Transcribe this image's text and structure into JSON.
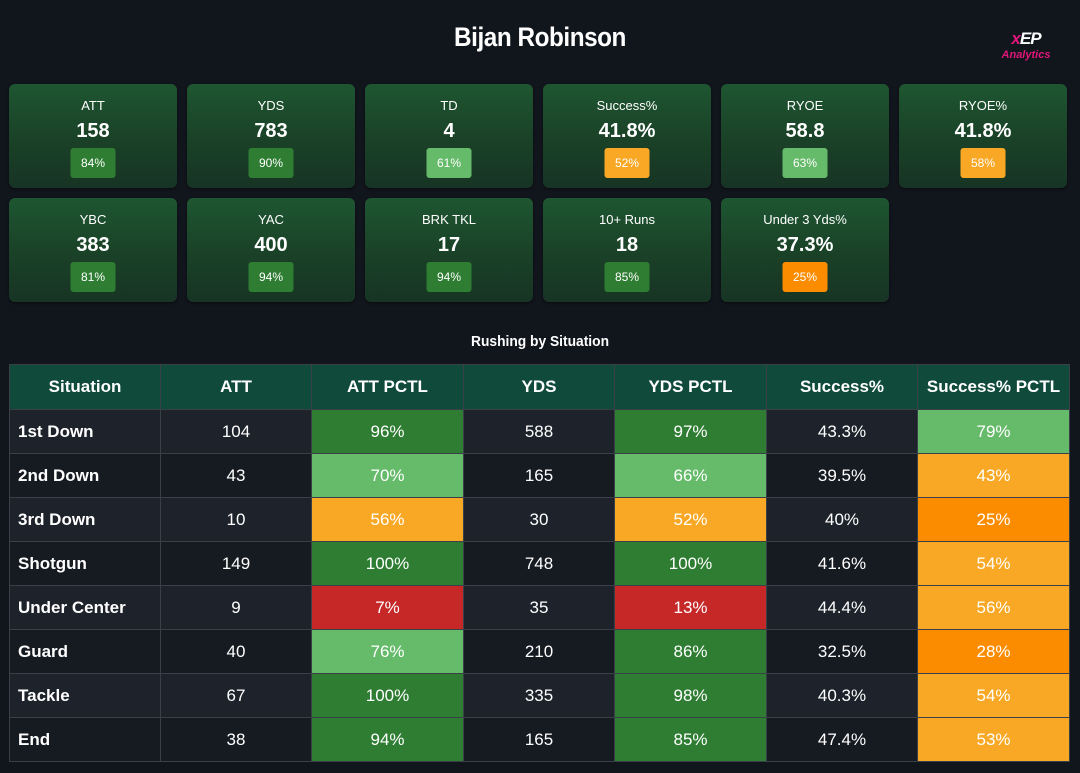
{
  "header": {
    "title": "Bijan Robinson",
    "logo": {
      "mark_x": "x",
      "mark_rest": "EP",
      "sub": "Analytics"
    }
  },
  "colors": {
    "dark_green": "#2e7d32",
    "light_green": "#66bb6a",
    "orange_light": "#f9a825",
    "orange": "#fb8c00",
    "red": "#c62828",
    "header_teal": "#0f4a3b"
  },
  "cards": [
    {
      "label": "ATT",
      "value": "158",
      "pct": "84%",
      "color": "#2e7d32"
    },
    {
      "label": "YDS",
      "value": "783",
      "pct": "90%",
      "color": "#2e7d32"
    },
    {
      "label": "TD",
      "value": "4",
      "pct": "61%",
      "color": "#66bb6a"
    },
    {
      "label": "Success%",
      "value": "41.8%",
      "pct": "52%",
      "color": "#f9a825"
    },
    {
      "label": "RYOE",
      "value": "58.8",
      "pct": "63%",
      "color": "#66bb6a"
    },
    {
      "label": "RYOE%",
      "value": "41.8%",
      "pct": "58%",
      "color": "#f9a825"
    },
    {
      "label": "YBC",
      "value": "383",
      "pct": "81%",
      "color": "#2e7d32"
    },
    {
      "label": "YAC",
      "value": "400",
      "pct": "94%",
      "color": "#2e7d32"
    },
    {
      "label": "BRK TKL",
      "value": "17",
      "pct": "94%",
      "color": "#2e7d32"
    },
    {
      "label": "10+ Runs",
      "value": "18",
      "pct": "85%",
      "color": "#2e7d32"
    },
    {
      "label": "Under 3 Yds%",
      "value": "37.3%",
      "pct": "25%",
      "color": "#fb8c00"
    }
  ],
  "situation": {
    "title": "Rushing by Situation",
    "columns": [
      "Situation",
      "ATT",
      "ATT PCTL",
      "YDS",
      "YDS PCTL",
      "Success%",
      "Success% PCTL"
    ],
    "rows": [
      {
        "situation": "1st Down",
        "att": "104",
        "att_pctl": "96%",
        "att_pctl_color": "#2e7d32",
        "yds": "588",
        "yds_pctl": "97%",
        "yds_pctl_color": "#2e7d32",
        "success": "43.3%",
        "success_pctl": "79%",
        "success_pctl_color": "#66bb6a"
      },
      {
        "situation": "2nd Down",
        "att": "43",
        "att_pctl": "70%",
        "att_pctl_color": "#66bb6a",
        "yds": "165",
        "yds_pctl": "66%",
        "yds_pctl_color": "#66bb6a",
        "success": "39.5%",
        "success_pctl": "43%",
        "success_pctl_color": "#f9a825"
      },
      {
        "situation": "3rd Down",
        "att": "10",
        "att_pctl": "56%",
        "att_pctl_color": "#f9a825",
        "yds": "30",
        "yds_pctl": "52%",
        "yds_pctl_color": "#f9a825",
        "success": "40%",
        "success_pctl": "25%",
        "success_pctl_color": "#fb8c00"
      },
      {
        "situation": "Shotgun",
        "att": "149",
        "att_pctl": "100%",
        "att_pctl_color": "#2e7d32",
        "yds": "748",
        "yds_pctl": "100%",
        "yds_pctl_color": "#2e7d32",
        "success": "41.6%",
        "success_pctl": "54%",
        "success_pctl_color": "#f9a825"
      },
      {
        "situation": "Under Center",
        "att": "9",
        "att_pctl": "7%",
        "att_pctl_color": "#c62828",
        "yds": "35",
        "yds_pctl": "13%",
        "yds_pctl_color": "#c62828",
        "success": "44.4%",
        "success_pctl": "56%",
        "success_pctl_color": "#f9a825"
      },
      {
        "situation": "Guard",
        "att": "40",
        "att_pctl": "76%",
        "att_pctl_color": "#66bb6a",
        "yds": "210",
        "yds_pctl": "86%",
        "yds_pctl_color": "#2e7d32",
        "success": "32.5%",
        "success_pctl": "28%",
        "success_pctl_color": "#fb8c00"
      },
      {
        "situation": "Tackle",
        "att": "67",
        "att_pctl": "100%",
        "att_pctl_color": "#2e7d32",
        "yds": "335",
        "yds_pctl": "98%",
        "yds_pctl_color": "#2e7d32",
        "success": "40.3%",
        "success_pctl": "54%",
        "success_pctl_color": "#f9a825"
      },
      {
        "situation": "End",
        "att": "38",
        "att_pctl": "94%",
        "att_pctl_color": "#2e7d32",
        "yds": "165",
        "yds_pctl": "85%",
        "yds_pctl_color": "#2e7d32",
        "success": "47.4%",
        "success_pctl": "53%",
        "success_pctl_color": "#f9a825"
      }
    ]
  }
}
